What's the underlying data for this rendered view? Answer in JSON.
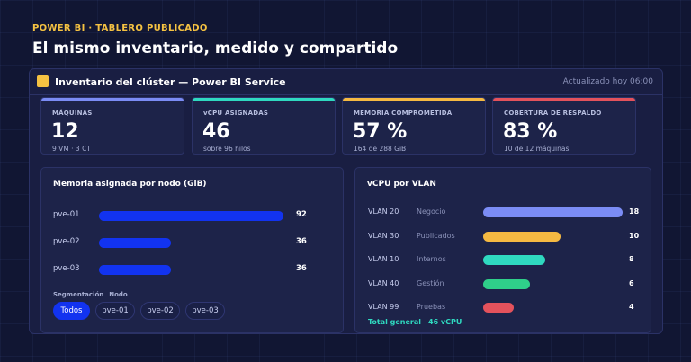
{
  "header": {
    "eyebrow": "POWER BI · TABLERO PUBLICADO",
    "title": "El mismo inventario, medido y compartido"
  },
  "panel": {
    "title": "Inventario del clúster — Power BI Service",
    "updated": "Actualizado hoy 06:00"
  },
  "kpis": [
    {
      "label": "MÁQUINAS",
      "value": "12",
      "sub": "9 VM · 3 CT",
      "color": "#7b8cf5"
    },
    {
      "label": "vCPU ASIGNADAS",
      "value": "46",
      "sub": "sobre 96 hilos",
      "color": "#2fd9c0"
    },
    {
      "label": "MEMORIA COMPROMETIDA",
      "value": "57 %",
      "sub": "164 de 288 GiB",
      "color": "#f5b942"
    },
    {
      "label": "COBERTURA DE RESPALDO",
      "value": "83 %",
      "sub": "10 de 12 máquinas",
      "color": "#e4525c"
    }
  ],
  "memory_card": {
    "title": "Memoria asignada por nodo (GiB)",
    "segment_label": "Segmentación",
    "segment_field": "Nodo",
    "chips": [
      "Todos",
      "pve-01",
      "pve-02",
      "pve-03"
    ],
    "active_chip": "Todos"
  },
  "vlan_card": {
    "title": "vCPU por VLAN",
    "total_label": "Total general",
    "total_value": "46 vCPU"
  },
  "chart_data": [
    {
      "type": "bar",
      "title": "Memoria asignada por nodo (GiB)",
      "categories": [
        "pve-01",
        "pve-02",
        "pve-03"
      ],
      "values": [
        92,
        36,
        36
      ],
      "xlim": [
        0,
        92
      ],
      "color": "#1233f0"
    },
    {
      "type": "bar",
      "title": "vCPU por VLAN",
      "categories": [
        "VLAN 20",
        "VLAN 30",
        "VLAN 10",
        "VLAN 40",
        "VLAN 99"
      ],
      "descriptions": [
        "Negocio",
        "Publicados",
        "Internos",
        "Gestión",
        "Pruebas"
      ],
      "values": [
        18,
        10,
        8,
        6,
        4
      ],
      "xlim": [
        0,
        18
      ],
      "colors": [
        "#7b8cf5",
        "#f5b942",
        "#2fd9c0",
        "#2fcf8a",
        "#e4525c"
      ]
    }
  ]
}
